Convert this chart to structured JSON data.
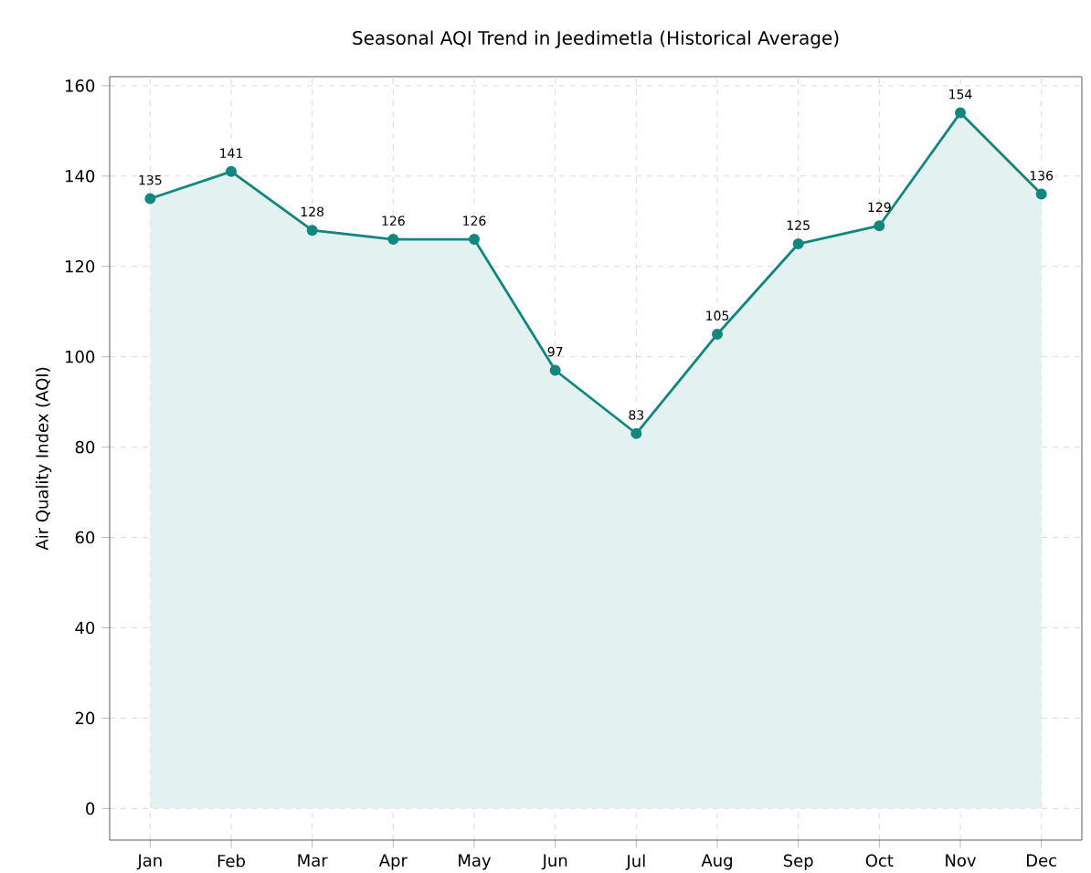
{
  "chart_data": {
    "type": "area",
    "title": "Seasonal AQI Trend in Jeedimetla (Historical Average)",
    "ylabel": "Air Quality Index (AQI)",
    "categories": [
      "Jan",
      "Feb",
      "Mar",
      "Apr",
      "May",
      "Jun",
      "Jul",
      "Aug",
      "Sep",
      "Oct",
      "Nov",
      "Dec"
    ],
    "series": [
      {
        "color": "#13877f",
        "values": [
          135,
          141,
          128,
          126,
          126,
          97,
          83,
          105,
          125,
          129,
          154,
          136
        ]
      }
    ],
    "ylim": [
      -7,
      162
    ],
    "yticks": [
      0,
      20,
      40,
      60,
      80,
      100,
      120,
      140,
      160
    ],
    "grid": true,
    "marker": "circle",
    "line_style": "solid",
    "data_labels": true
  }
}
